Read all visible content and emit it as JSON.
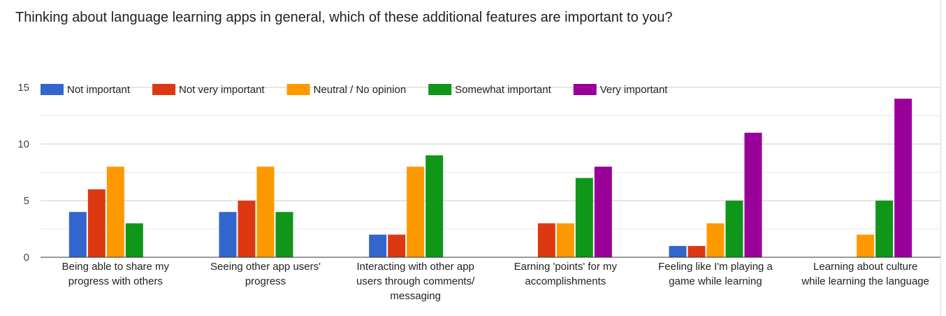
{
  "question": "Thinking about language learning apps in general, which of these additional features are important to you?",
  "chart_data": {
    "type": "bar",
    "title": "",
    "xlabel": "",
    "ylabel": "",
    "ylim": [
      0,
      15
    ],
    "y_ticks": [
      "0",
      "5",
      "10",
      "15"
    ],
    "grid": true,
    "legend_position": "top",
    "categories": [
      [
        "Being able to share my",
        "progress with others"
      ],
      [
        "Seeing other app users'",
        "progress"
      ],
      [
        "Interacting with other app",
        "users through comments/",
        "messaging"
      ],
      [
        "Earning 'points' for my",
        "accomplishments"
      ],
      [
        "Feeling like I'm playing a",
        "game while learning"
      ],
      [
        "Learning about culture",
        "while learning the language"
      ]
    ],
    "series": [
      {
        "name": "Not important",
        "color": "#3366cc",
        "values": [
          4,
          4,
          2,
          0,
          1,
          0
        ]
      },
      {
        "name": "Not very important",
        "color": "#dc3912",
        "values": [
          6,
          5,
          2,
          3,
          1,
          0
        ]
      },
      {
        "name": "Neutral / No opinion",
        "color": "#ff9900",
        "values": [
          8,
          8,
          8,
          3,
          3,
          2
        ]
      },
      {
        "name": "Somewhat important",
        "color": "#109618",
        "values": [
          3,
          4,
          9,
          7,
          5,
          5
        ]
      },
      {
        "name": "Very important",
        "color": "#990099",
        "values": [
          0,
          0,
          0,
          8,
          11,
          14
        ]
      }
    ]
  }
}
